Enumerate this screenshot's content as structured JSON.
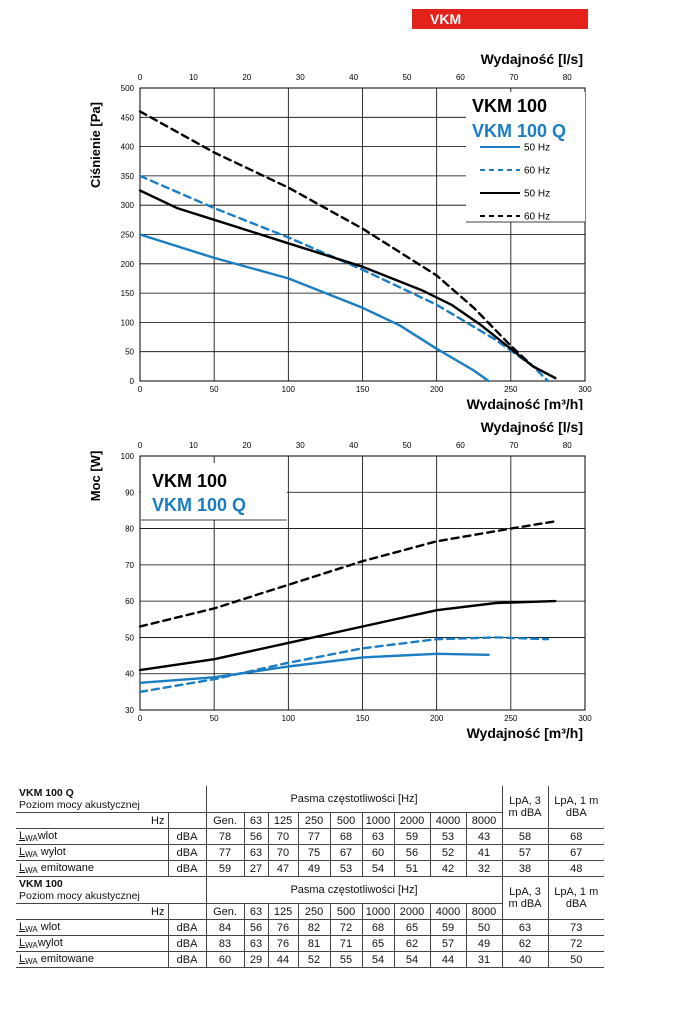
{
  "header": {
    "tag": "VKM"
  },
  "chart_data": [
    {
      "type": "line",
      "title": "",
      "model_labels": [
        "VKM 100",
        "VKM 100 Q"
      ],
      "xlabel": "Wydajność [m³/h]",
      "x2label": "Wydajność [l/s]",
      "ylabel": "Ciśnienie [Pa]",
      "xlim": [
        0,
        300
      ],
      "x2lim": [
        0,
        83.33
      ],
      "ylim": [
        0,
        500
      ],
      "xticks": [
        0,
        50,
        100,
        150,
        200,
        250,
        300
      ],
      "x2ticks": [
        0,
        10,
        20,
        30,
        40,
        50,
        60,
        70,
        80
      ],
      "yticks": [
        0,
        50,
        100,
        150,
        200,
        250,
        300,
        350,
        400,
        450,
        500
      ],
      "grid": true,
      "legend": {
        "placement": "top-right",
        "entries": [
          "50 Hz",
          "60 Hz",
          "50 Hz",
          "60 Hz"
        ]
      },
      "series": [
        {
          "name": "50 Hz",
          "model": "VKM 100 Q",
          "color": "#1b7dc2",
          "dash": false,
          "x": [
            0,
            50,
            100,
            150,
            175,
            200,
            225,
            235
          ],
          "y": [
            250,
            210,
            175,
            125,
            95,
            55,
            18,
            0
          ]
        },
        {
          "name": "60 Hz",
          "model": "VKM 100 Q",
          "color": "#1b7dc2",
          "dash": true,
          "x": [
            0,
            50,
            100,
            150,
            200,
            240,
            265,
            275
          ],
          "y": [
            350,
            295,
            245,
            190,
            130,
            70,
            25,
            0
          ]
        },
        {
          "name": "50 Hz",
          "model": "VKM 100",
          "color": "#000000",
          "dash": false,
          "x": [
            0,
            25,
            50,
            100,
            150,
            190,
            210,
            230,
            250,
            265,
            280
          ],
          "y": [
            325,
            295,
            275,
            235,
            195,
            155,
            130,
            95,
            55,
            25,
            5
          ]
        },
        {
          "name": "60 Hz",
          "model": "VKM 100",
          "color": "#000000",
          "dash": true,
          "x": [
            0,
            50,
            100,
            150,
            200,
            225,
            250,
            265,
            280
          ],
          "y": [
            460,
            390,
            330,
            260,
            180,
            125,
            60,
            25,
            5
          ]
        }
      ]
    },
    {
      "type": "line",
      "title": "",
      "model_labels": [
        "VKM 100",
        "VKM 100 Q"
      ],
      "xlabel": "Wydajność  [m³/h]",
      "x2label": "Wydajność [l/s]",
      "ylabel": "Moc [W]",
      "xlim": [
        0,
        300
      ],
      "x2lim": [
        0,
        83.33
      ],
      "ylim": [
        30,
        100
      ],
      "xticks": [
        0,
        50,
        100,
        150,
        200,
        250,
        300
      ],
      "x2ticks": [
        0,
        10,
        20,
        30,
        40,
        50,
        60,
        70,
        80
      ],
      "yticks": [
        30,
        40,
        50,
        60,
        70,
        80,
        90,
        100
      ],
      "grid": true,
      "legend": {
        "placement": "top-left"
      },
      "series": [
        {
          "model": "VKM 100 Q",
          "frequency": "50 Hz",
          "color": "#1b7dc2",
          "dash": false,
          "x": [
            0,
            50,
            100,
            150,
            200,
            235
          ],
          "y": [
            37.5,
            39,
            42,
            44.5,
            45.5,
            45.2
          ]
        },
        {
          "model": "VKM 100 Q",
          "frequency": "60 Hz",
          "color": "#1b7dc2",
          "dash": true,
          "x": [
            0,
            50,
            100,
            150,
            200,
            240,
            275
          ],
          "y": [
            35,
            38.5,
            43,
            47,
            49.5,
            50,
            49.5
          ]
        },
        {
          "model": "VKM 100",
          "frequency": "50 Hz",
          "color": "#000000",
          "dash": false,
          "x": [
            0,
            50,
            100,
            150,
            200,
            240,
            280
          ],
          "y": [
            41,
            44,
            48.5,
            53,
            57.5,
            59.5,
            60
          ]
        },
        {
          "model": "VKM 100",
          "frequency": "60 Hz",
          "color": "#000000",
          "dash": true,
          "x": [
            0,
            50,
            100,
            150,
            200,
            250,
            280
          ],
          "y": [
            53,
            58,
            64.5,
            71,
            76.5,
            80,
            82
          ]
        }
      ]
    }
  ],
  "tables": [
    {
      "model": "VKM 100 Q",
      "subtitle": "Poziom mocy akustycznej",
      "bands_label": "Pasma częstotliwości [Hz]",
      "hz_label": "Hz",
      "bands": [
        "Gen.",
        "63",
        "125",
        "250",
        "500",
        "1000",
        "2000",
        "4000",
        "8000"
      ],
      "lpa3": "LpA, 3 m dBA",
      "lpa1": "LpA, 1 m dBA",
      "rows": [
        {
          "label": "wlot",
          "unit": "dBA",
          "values": [
            "78",
            "56",
            "70",
            "77",
            "68",
            "63",
            "59",
            "53",
            "43"
          ],
          "lpa3": "58",
          "lpa1": "68"
        },
        {
          "label": " wylot",
          "unit": "dBA",
          "values": [
            "77",
            "63",
            "70",
            "75",
            "67",
            "60",
            "56",
            "52",
            "41"
          ],
          "lpa3": "57",
          "lpa1": "67"
        },
        {
          "label": "  emitowane",
          "unit": "dBA",
          "values": [
            "59",
            "27",
            "47",
            "49",
            "53",
            "54",
            "51",
            "42",
            "32"
          ],
          "lpa3": "38",
          "lpa1": "48"
        }
      ]
    },
    {
      "model": "VKM 100",
      "subtitle": "Poziom mocy akustycznej",
      "bands_label": "Pasma częstotliwości [Hz]",
      "hz_label": "Hz",
      "bands": [
        "Gen.",
        "63",
        "125",
        "250",
        "500",
        "1000",
        "2000",
        "4000",
        "8000"
      ],
      "lpa3": "LpA, 3 m dBA",
      "lpa1": "LpA, 1 m dBA",
      "rows": [
        {
          "label": " wlot",
          "unit": "dBA",
          "values": [
            "84",
            "56",
            "76",
            "82",
            "72",
            "68",
            "65",
            "59",
            "50"
          ],
          "lpa3": "63",
          "lpa1": "73"
        },
        {
          "label": "wylot",
          "unit": "dBA",
          "values": [
            "83",
            "63",
            "76",
            "81",
            "71",
            "65",
            "62",
            "57",
            "49"
          ],
          "lpa3": "62",
          "lpa1": "72"
        },
        {
          "label": "  emitowane",
          "unit": "dBA",
          "values": [
            "60",
            "29",
            "44",
            "52",
            "55",
            "54",
            "54",
            "44",
            "31"
          ],
          "lpa3": "40",
          "lpa1": "50"
        }
      ]
    }
  ]
}
